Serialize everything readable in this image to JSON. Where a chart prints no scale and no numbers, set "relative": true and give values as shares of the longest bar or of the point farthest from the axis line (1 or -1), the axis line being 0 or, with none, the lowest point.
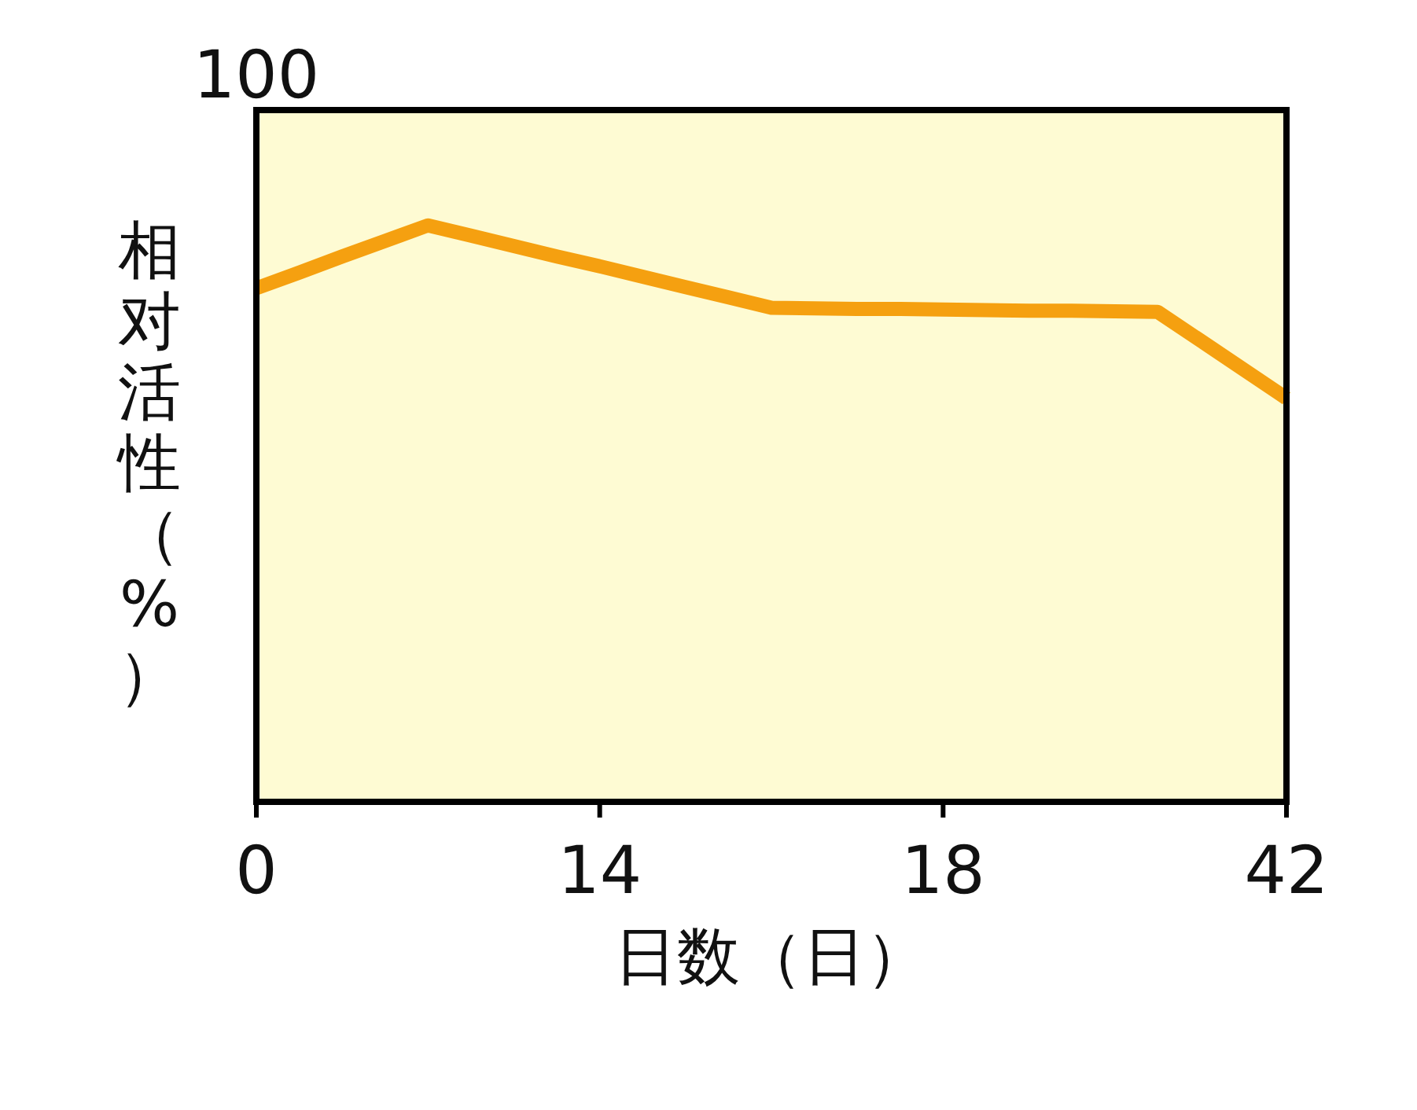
{
  "chart_data": {
    "type": "line",
    "xlabel": "日数（日）",
    "ylabel": "相对活性（%）",
    "relative": true,
    "categories": [
      "0",
      null,
      null,
      null,
      null,
      null,
      null,
      null,
      "14",
      null,
      null,
      null,
      null,
      null,
      null,
      null,
      "18",
      null,
      null,
      null,
      null,
      null,
      null,
      null,
      "42"
    ],
    "values": [
      0.891,
      0.918,
      0.946,
      0.973,
      1,
      0.982,
      0.964,
      0.946,
      0.929,
      0.911,
      0.893,
      0.875,
      0.857,
      0.856,
      0.855,
      0.855,
      0.854,
      0.853,
      0.852,
      0.852,
      0.851,
      0.85,
      0.8,
      0.75,
      0.7
    ],
    "color": "#f5a010",
    "line_style": "solid",
    "annotations": [
      "100"
    ]
  }
}
